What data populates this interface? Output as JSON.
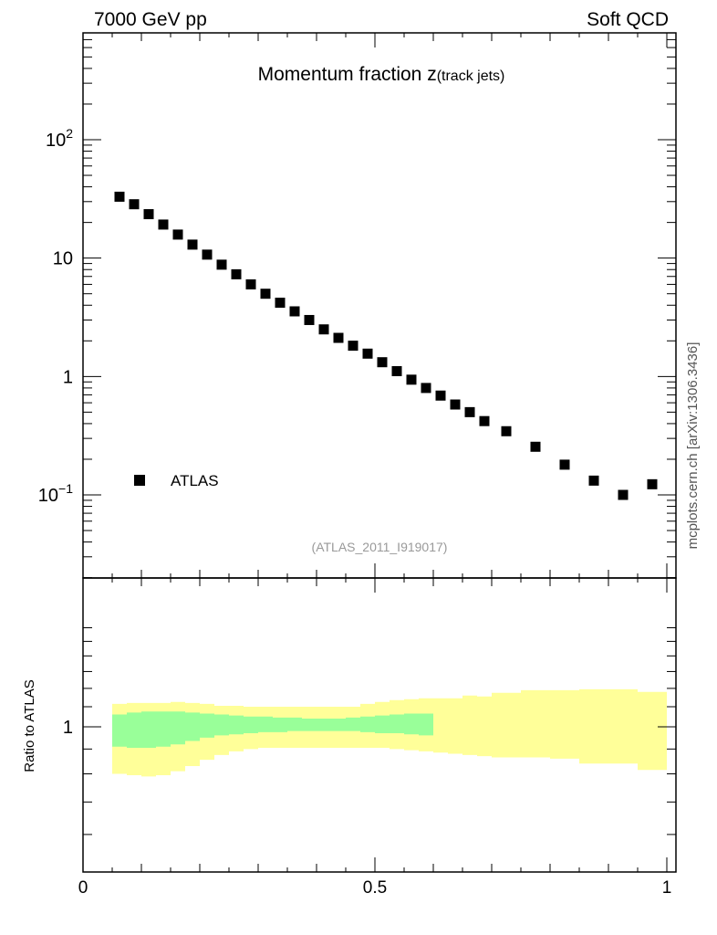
{
  "header": {
    "left_label": "7000 GeV pp",
    "right_label": "Soft QCD"
  },
  "side_label": "mcplots.cern.ch [arXiv:1306.3436]",
  "chart_data": [
    {
      "type": "scatter",
      "title_main": "Momentum fraction z",
      "title_sub": "(track jets)",
      "y_scale": "log",
      "xlim": [
        0,
        1
      ],
      "ylim": [
        0.02,
        1000
      ],
      "y_ticks": [
        {
          "value": 0.1,
          "base": "10",
          "exp": "−1"
        },
        {
          "value": 1,
          "base": "1",
          "exp": ""
        },
        {
          "value": 10,
          "base": "10",
          "exp": ""
        },
        {
          "value": 100,
          "base": "10",
          "exp": "2"
        }
      ],
      "legend": {
        "label": "ATLAS",
        "position": "lower-left"
      },
      "annotation": "(ATLAS_2011_I919017)",
      "series": [
        {
          "name": "ATLAS",
          "color": "#000000",
          "x": [
            0.0625,
            0.0875,
            0.1125,
            0.1375,
            0.1625,
            0.1875,
            0.2125,
            0.2375,
            0.2625,
            0.2875,
            0.3125,
            0.3375,
            0.3625,
            0.3875,
            0.4125,
            0.4375,
            0.4625,
            0.4875,
            0.5125,
            0.5375,
            0.5625,
            0.5875,
            0.6125,
            0.6375,
            0.6625,
            0.6875,
            0.725,
            0.775,
            0.825,
            0.875,
            0.925,
            0.975
          ],
          "y": [
            33,
            28.5,
            23.5,
            19.2,
            15.8,
            13,
            10.7,
            8.8,
            7.3,
            6.0,
            5.0,
            4.2,
            3.55,
            3.0,
            2.5,
            2.12,
            1.82,
            1.56,
            1.32,
            1.11,
            0.94,
            0.8,
            0.69,
            0.58,
            0.5,
            0.42,
            0.345,
            0.255,
            0.18,
            0.132,
            0.1,
            0.123
          ]
        }
      ]
    },
    {
      "type": "area",
      "ylabel": "Ratio to ATLAS",
      "xlim": [
        0,
        1
      ],
      "ylim": [
        0.5,
        1.6
      ],
      "x_ticks": [
        {
          "value": 0,
          "label": "0"
        },
        {
          "value": 0.5,
          "label": "0.5"
        },
        {
          "value": 1,
          "label": "1"
        }
      ],
      "y_ticks": [
        {
          "value": 1,
          "label": "1"
        }
      ],
      "bands": [
        {
          "name": "stat+syst",
          "color": "#ffff99",
          "bins": [
            [
              0.05,
              0.075
            ],
            [
              0.075,
              0.1
            ],
            [
              0.1,
              0.125
            ],
            [
              0.125,
              0.15
            ],
            [
              0.15,
              0.175
            ],
            [
              0.175,
              0.2
            ],
            [
              0.2,
              0.225
            ],
            [
              0.225,
              0.25
            ],
            [
              0.25,
              0.275
            ],
            [
              0.275,
              0.3
            ],
            [
              0.3,
              0.325
            ],
            [
              0.325,
              0.35
            ],
            [
              0.35,
              0.375
            ],
            [
              0.375,
              0.4
            ],
            [
              0.4,
              0.425
            ],
            [
              0.425,
              0.45
            ],
            [
              0.45,
              0.475
            ],
            [
              0.475,
              0.5
            ],
            [
              0.5,
              0.525
            ],
            [
              0.525,
              0.55
            ],
            [
              0.55,
              0.575
            ],
            [
              0.575,
              0.6
            ],
            [
              0.6,
              0.625
            ],
            [
              0.625,
              0.65
            ],
            [
              0.65,
              0.675
            ],
            [
              0.675,
              0.7
            ],
            [
              0.7,
              0.75
            ],
            [
              0.75,
              0.8
            ],
            [
              0.8,
              0.85
            ],
            [
              0.85,
              0.9
            ],
            [
              0.9,
              0.95
            ],
            [
              0.95,
              1.0
            ]
          ],
          "low": [
            0.8,
            0.795,
            0.79,
            0.795,
            0.81,
            0.83,
            0.855,
            0.875,
            0.89,
            0.9,
            0.905,
            0.905,
            0.905,
            0.905,
            0.905,
            0.905,
            0.905,
            0.905,
            0.905,
            0.9,
            0.895,
            0.89,
            0.885,
            0.88,
            0.875,
            0.87,
            0.865,
            0.865,
            0.86,
            0.84,
            0.84,
            0.815
          ],
          "high": [
            1.115,
            1.12,
            1.12,
            1.12,
            1.125,
            1.12,
            1.115,
            1.105,
            1.105,
            1.1,
            1.1,
            1.1,
            1.1,
            1.1,
            1.1,
            1.1,
            1.1,
            1.115,
            1.125,
            1.135,
            1.14,
            1.145,
            1.145,
            1.145,
            1.16,
            1.155,
            1.175,
            1.19,
            1.19,
            1.195,
            1.195,
            1.18
          ]
        },
        {
          "name": "stat",
          "color": "#99ff99",
          "bins": [
            [
              0.05,
              0.075
            ],
            [
              0.075,
              0.1
            ],
            [
              0.1,
              0.125
            ],
            [
              0.125,
              0.15
            ],
            [
              0.15,
              0.175
            ],
            [
              0.175,
              0.2
            ],
            [
              0.2,
              0.225
            ],
            [
              0.225,
              0.25
            ],
            [
              0.25,
              0.275
            ],
            [
              0.275,
              0.3
            ],
            [
              0.3,
              0.325
            ],
            [
              0.325,
              0.35
            ],
            [
              0.35,
              0.375
            ],
            [
              0.375,
              0.4
            ],
            [
              0.4,
              0.425
            ],
            [
              0.425,
              0.45
            ],
            [
              0.45,
              0.475
            ],
            [
              0.475,
              0.5
            ],
            [
              0.5,
              0.525
            ],
            [
              0.525,
              0.55
            ],
            [
              0.55,
              0.575
            ],
            [
              0.575,
              0.6
            ]
          ],
          "low": [
            0.91,
            0.905,
            0.905,
            0.91,
            0.92,
            0.935,
            0.95,
            0.96,
            0.965,
            0.97,
            0.975,
            0.975,
            0.98,
            0.98,
            0.98,
            0.98,
            0.98,
            0.975,
            0.97,
            0.97,
            0.965,
            0.96
          ],
          "high": [
            1.06,
            1.07,
            1.075,
            1.075,
            1.075,
            1.07,
            1.065,
            1.06,
            1.055,
            1.05,
            1.05,
            1.045,
            1.045,
            1.04,
            1.04,
            1.04,
            1.045,
            1.05,
            1.055,
            1.06,
            1.065,
            1.065
          ]
        }
      ]
    }
  ]
}
